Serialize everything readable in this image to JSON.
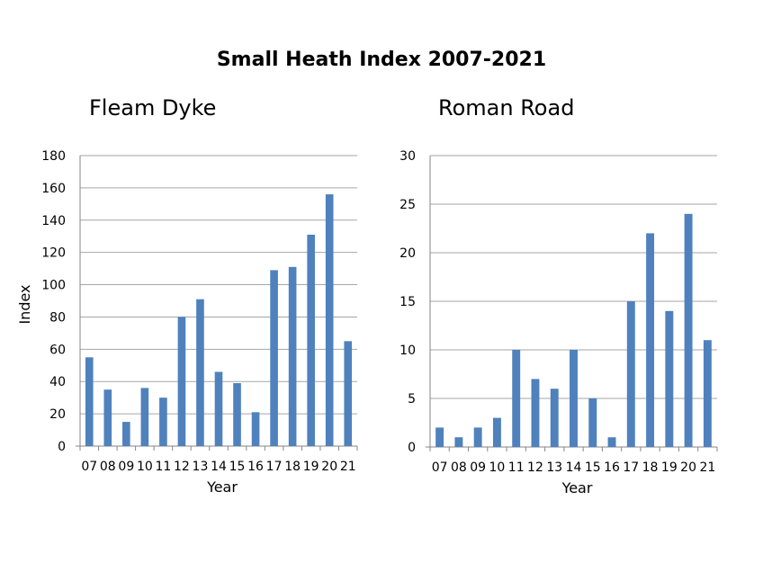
{
  "title": "Small Heath Index 2007-2021",
  "bar_color": "#4f81bd",
  "grid_color": "#a6a6a6",
  "chart_data": [
    {
      "type": "bar",
      "title": "Fleam Dyke",
      "xlabel": "Year",
      "ylabel": "Index",
      "categories": [
        "07",
        "08",
        "09",
        "10",
        "11",
        "12",
        "13",
        "14",
        "15",
        "16",
        "17",
        "18",
        "19",
        "20",
        "21"
      ],
      "values": [
        55,
        35,
        15,
        36,
        30,
        80,
        91,
        46,
        39,
        21,
        109,
        111,
        131,
        156,
        65
      ],
      "ylim": [
        0,
        180
      ],
      "yticks": [
        "0",
        "20",
        "40",
        "60",
        "80",
        "100",
        "120",
        "140",
        "160",
        "180"
      ],
      "ytick_step": 20,
      "grid": true,
      "legend": "none"
    },
    {
      "type": "bar",
      "title": "Roman Road",
      "xlabel": "Year",
      "ylabel": "",
      "categories": [
        "07",
        "08",
        "09",
        "10",
        "11",
        "12",
        "13",
        "14",
        "15",
        "16",
        "17",
        "18",
        "19",
        "20",
        "21"
      ],
      "values": [
        2,
        1,
        2,
        3,
        10,
        7,
        6,
        10,
        5,
        1,
        15,
        22,
        14,
        24,
        11
      ],
      "ylim": [
        0,
        30
      ],
      "yticks": [
        "0",
        "5",
        "10",
        "15",
        "20",
        "25",
        "30"
      ],
      "ytick_step": 5,
      "grid": true,
      "legend": "none"
    }
  ]
}
